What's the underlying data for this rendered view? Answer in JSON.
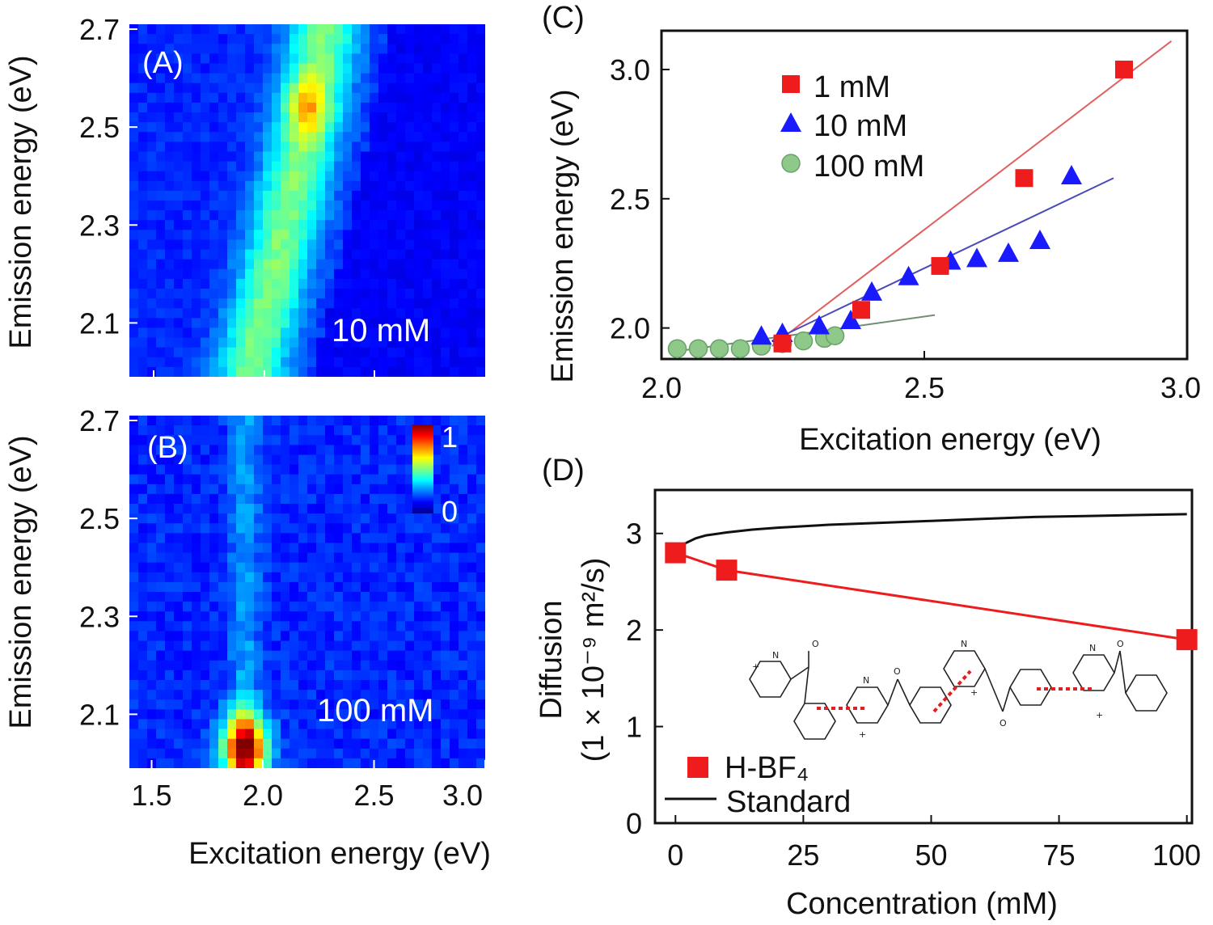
{
  "chart_data": [
    {
      "panel": "(A)",
      "type": "heatmap",
      "annotation": "10 mM",
      "xlim": [
        1.4,
        3.0
      ],
      "ylim": [
        1.99,
        2.71
      ],
      "yticks": [
        "2.7",
        "2.5",
        "2.3",
        "2.1"
      ],
      "ylabel": "Emission energy (eV)",
      "colorscale": "jet",
      "ridge": [
        {
          "emission": 2.02,
          "excitation": 1.95
        },
        {
          "emission": 2.1,
          "excitation": 2.0
        },
        {
          "emission": 2.3,
          "excitation": 2.1
        },
        {
          "emission": 2.5,
          "excitation": 2.2
        },
        {
          "emission": 2.7,
          "excitation": 2.28
        }
      ],
      "peak": {
        "excitation": 2.2,
        "emission": 2.54,
        "intensity": 0.7
      }
    },
    {
      "panel": "(B)",
      "type": "heatmap",
      "annotation": "100 mM",
      "xlim": [
        1.4,
        3.0
      ],
      "ylim": [
        1.99,
        2.71
      ],
      "xticks": [
        "1.5",
        "2.0",
        "2.5",
        "3.0"
      ],
      "yticks": [
        "2.7",
        "2.5",
        "2.3",
        "2.1"
      ],
      "xlabel": "Excitation energy (eV)",
      "ylabel": "Emission energy (eV)",
      "colorbar": {
        "max_label": "1",
        "min_label": "0",
        "colorscale": "jet"
      },
      "peak": {
        "excitation": 1.92,
        "emission": 2.03,
        "intensity": 1.0
      }
    },
    {
      "panel": "(C)",
      "type": "scatter",
      "xlabel": "Excitation energy (eV)",
      "ylabel": "Emission energy (eV)",
      "xlim": [
        2.0,
        3.0
      ],
      "ylim": [
        1.88,
        3.15
      ],
      "xticks": [
        "2.0",
        "2.5",
        "3.0"
      ],
      "yticks": [
        "3.0",
        "2.5",
        "2.0"
      ],
      "legend_position": "top-left",
      "series": [
        {
          "name": "1 mM",
          "marker": "square",
          "color": "#ee1c1c",
          "x": [
            2.23,
            2.38,
            2.53,
            2.69,
            2.88
          ],
          "y": [
            1.94,
            2.07,
            2.24,
            2.58,
            3.0
          ]
        },
        {
          "name": "10 mM",
          "marker": "triangle",
          "color": "#1a1aff",
          "x": [
            2.19,
            2.23,
            2.3,
            2.36,
            2.4,
            2.47,
            2.55,
            2.6,
            2.66,
            2.72,
            2.78
          ],
          "y": [
            1.97,
            1.98,
            2.01,
            2.03,
            2.14,
            2.2,
            2.26,
            2.27,
            2.29,
            2.34,
            2.59
          ]
        },
        {
          "name": "100 mM",
          "marker": "circle",
          "color": "#8fc98a",
          "x": [
            2.03,
            2.07,
            2.11,
            2.15,
            2.19,
            2.23,
            2.27,
            2.31,
            2.33
          ],
          "y": [
            1.92,
            1.92,
            1.92,
            1.92,
            1.93,
            1.94,
            1.95,
            1.96,
            1.97
          ]
        }
      ],
      "fit_lines": [
        {
          "color": "#e06060",
          "x": [
            2.21,
            2.97
          ],
          "y": [
            1.93,
            3.11
          ]
        },
        {
          "color": "#4a4ab8",
          "x": [
            2.21,
            2.86
          ],
          "y": [
            1.95,
            2.58
          ]
        },
        {
          "color": "#6f8f6f",
          "x": [
            2.03,
            2.52
          ],
          "y": [
            1.91,
            2.05
          ]
        }
      ]
    },
    {
      "panel": "(D)",
      "type": "line",
      "xlabel": "Concentration (mM)",
      "ylabel_line1": "Diffusion",
      "ylabel_line2": "(1 × 10⁻⁹ m²/s)",
      "xlim": [
        -4,
        101
      ],
      "ylim": [
        0,
        3.45
      ],
      "xticks": [
        "0",
        "25",
        "50",
        "75",
        "100"
      ],
      "yticks": [
        "0",
        "1",
        "2",
        "3"
      ],
      "legend_position": "bottom-left",
      "series": [
        {
          "name": "H-BF₄",
          "marker": "square",
          "color": "#ee1c1c",
          "x": [
            0,
            10,
            100
          ],
          "y": [
            2.8,
            2.62,
            1.9
          ]
        },
        {
          "name": "Standard",
          "marker": "none",
          "color": "#111111",
          "x": [
            0,
            1,
            2,
            4,
            6,
            10,
            15,
            20,
            30,
            40,
            50,
            60,
            70,
            80,
            90,
            100
          ],
          "y": [
            2.8,
            2.85,
            2.9,
            2.95,
            2.98,
            3.01,
            3.04,
            3.06,
            3.09,
            3.11,
            3.13,
            3.15,
            3.17,
            3.18,
            3.19,
            3.2
          ]
        }
      ]
    }
  ],
  "structure_labels": {
    "n": "N",
    "o": "O",
    "plus": "+"
  }
}
